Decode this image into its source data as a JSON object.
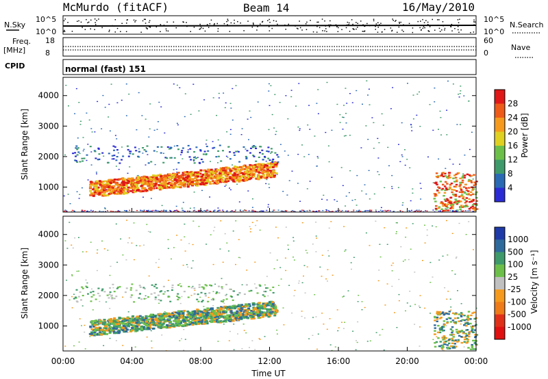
{
  "header": {
    "station": "McMurdo (fitACF)",
    "beam": "Beam 14",
    "date": "16/May/2010"
  },
  "top_panels": {
    "nsky_label": "N.Sky",
    "nsky_ticks": [
      "10^5",
      "10^0"
    ],
    "nsearch_label": "N.Search",
    "nsearch_ticks": [
      "10^5",
      "10^0"
    ],
    "freq_label": "Freq.",
    "freq_unit": "[MHz]",
    "freq_ticks": [
      "18",
      "8"
    ],
    "nave_label": "Nave",
    "nave_ticks": [
      "60",
      "0"
    ],
    "cpid_label": "CPID",
    "cpid_value": "normal (fast) 151"
  },
  "chart_data": [
    {
      "type": "heatmap",
      "name": "power",
      "ylabel": "Slant Range [km]",
      "ylim": [
        180,
        4600
      ],
      "yticks": [
        "4000",
        "3000",
        "2000",
        "1000"
      ],
      "colorbar_label": "Power [dB]",
      "colorbar_ticks": [
        "28",
        "24",
        "20",
        "16",
        "12",
        "8",
        "4"
      ],
      "colorbar_colors": [
        "#2b2bd6",
        "#2a6ab5",
        "#3e9a6a",
        "#6cc04a",
        "#e0d020",
        "#f59a1c",
        "#ee5a18",
        "#e01818"
      ],
      "features": [
        {
          "x": [
            1.5,
            12.5
          ],
          "y": [
            700,
            1500
          ],
          "level": "high"
        },
        {
          "x": [
            0.5,
            12.5
          ],
          "y": [
            1800,
            2400
          ],
          "level": "low"
        },
        {
          "x": [
            21.5,
            24
          ],
          "y": [
            200,
            1500
          ],
          "level": "high"
        }
      ]
    },
    {
      "type": "heatmap",
      "name": "velocity",
      "ylabel": "Slant Range [km]",
      "ylim": [
        180,
        4600
      ],
      "yticks": [
        "4000",
        "3000",
        "2000",
        "1000"
      ],
      "colorbar_label": "Velocity [m s⁻¹]",
      "colorbar_ticks": [
        "1000",
        "500",
        "100",
        "25",
        "-25",
        "-100",
        "-500",
        "-1000"
      ],
      "colorbar_colors": [
        "#1e3aa8",
        "#2f6a9c",
        "#3e9a6a",
        "#6cc04a",
        "#c0c0c0",
        "#f59a1c",
        "#ee7a18",
        "#e03018",
        "#e01010"
      ],
      "xlabel": "Time UT",
      "xticks": [
        "00:00",
        "04:00",
        "08:00",
        "12:00",
        "16:00",
        "20:00",
        "00:00"
      ],
      "xlim": [
        0,
        24
      ]
    }
  ]
}
